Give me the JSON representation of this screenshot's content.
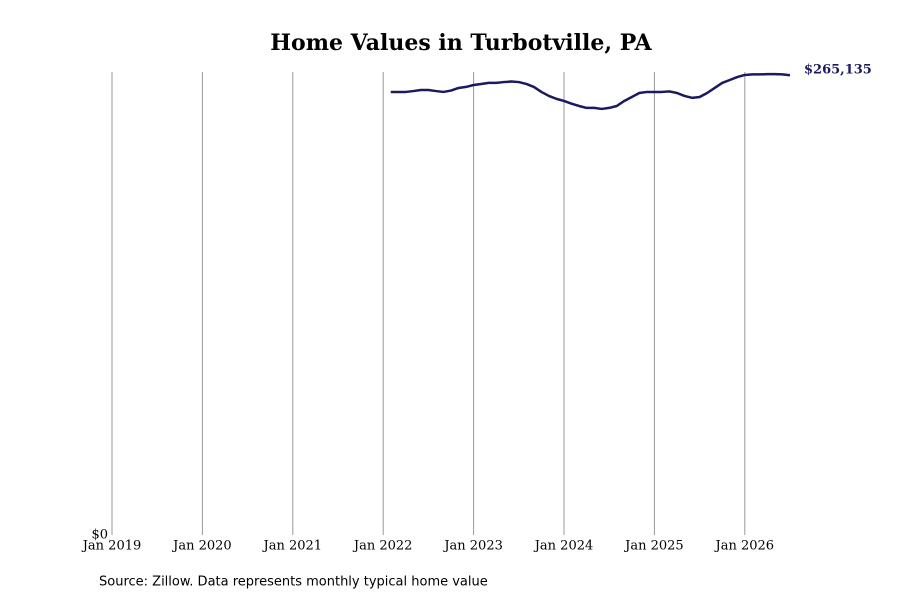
{
  "chart_data": {
    "type": "line",
    "title": "Home Values in Turbotville, PA",
    "source": "Source: Zillow. Data represents monthly typical home value",
    "x": [
      "2022-02",
      "2022-03",
      "2022-04",
      "2022-05",
      "2022-06",
      "2022-07",
      "2022-08",
      "2022-09",
      "2022-10",
      "2022-11",
      "2022-12",
      "2023-01",
      "2023-02",
      "2023-03",
      "2023-04",
      "2023-05",
      "2023-06",
      "2023-07",
      "2023-08",
      "2023-09",
      "2023-10",
      "2023-11",
      "2023-12",
      "2024-01",
      "2024-02",
      "2024-03",
      "2024-04",
      "2024-05",
      "2024-06",
      "2024-07",
      "2024-08",
      "2024-09",
      "2024-10",
      "2024-11",
      "2024-12",
      "2025-01",
      "2025-02",
      "2025-03",
      "2025-04",
      "2025-05",
      "2025-06",
      "2025-07",
      "2025-08",
      "2025-09",
      "2025-10",
      "2025-11",
      "2025-12",
      "2026-01",
      "2026-02",
      "2026-03",
      "2026-04",
      "2026-05",
      "2026-06",
      "2026-07"
    ],
    "series": [
      {
        "name": "Home value",
        "color": "#1a1a5e",
        "values": [
          255500,
          255500,
          255500,
          256000,
          256600,
          256600,
          256000,
          255500,
          256300,
          257800,
          258400,
          259500,
          260100,
          260700,
          260700,
          261200,
          261500,
          261200,
          260100,
          258400,
          255500,
          253200,
          251500,
          250300,
          248700,
          247400,
          246300,
          246300,
          245700,
          246300,
          247400,
          250300,
          252600,
          254900,
          255500,
          255500,
          255500,
          255800,
          254900,
          253200,
          252100,
          252600,
          254900,
          257800,
          260700,
          262400,
          264100,
          265300,
          265600,
          265600,
          265800,
          265800,
          265600,
          265135
        ],
        "value_labels": [
          null,
          null,
          null,
          null,
          null,
          null,
          null,
          null,
          null,
          null,
          null,
          null,
          null,
          null,
          null,
          null,
          null,
          null,
          null,
          null,
          null,
          null,
          null,
          null,
          null,
          null,
          null,
          null,
          null,
          null,
          null,
          null,
          null,
          null,
          null,
          null,
          null,
          null,
          null,
          null,
          null,
          null,
          null,
          null,
          null,
          null,
          null,
          null,
          null,
          null,
          null,
          null,
          null,
          "$265,135"
        ]
      }
    ],
    "xlim": [
      "2019-01",
      "2026-07"
    ],
    "xticks": [
      {
        "value": "2019-01",
        "label": "Jan 2019"
      },
      {
        "value": "2020-01",
        "label": "Jan 2020"
      },
      {
        "value": "2021-01",
        "label": "Jan 2021"
      },
      {
        "value": "2022-01",
        "label": "Jan 2022"
      },
      {
        "value": "2023-01",
        "label": "Jan 2023"
      },
      {
        "value": "2024-01",
        "label": "Jan 2024"
      },
      {
        "value": "2025-01",
        "label": "Jan 2025"
      },
      {
        "value": "2026-01",
        "label": "Jan 2026"
      }
    ],
    "ylim": [
      0,
      267000
    ],
    "yticks": [
      {
        "value": 0,
        "label": "$0"
      }
    ],
    "grid": true
  }
}
